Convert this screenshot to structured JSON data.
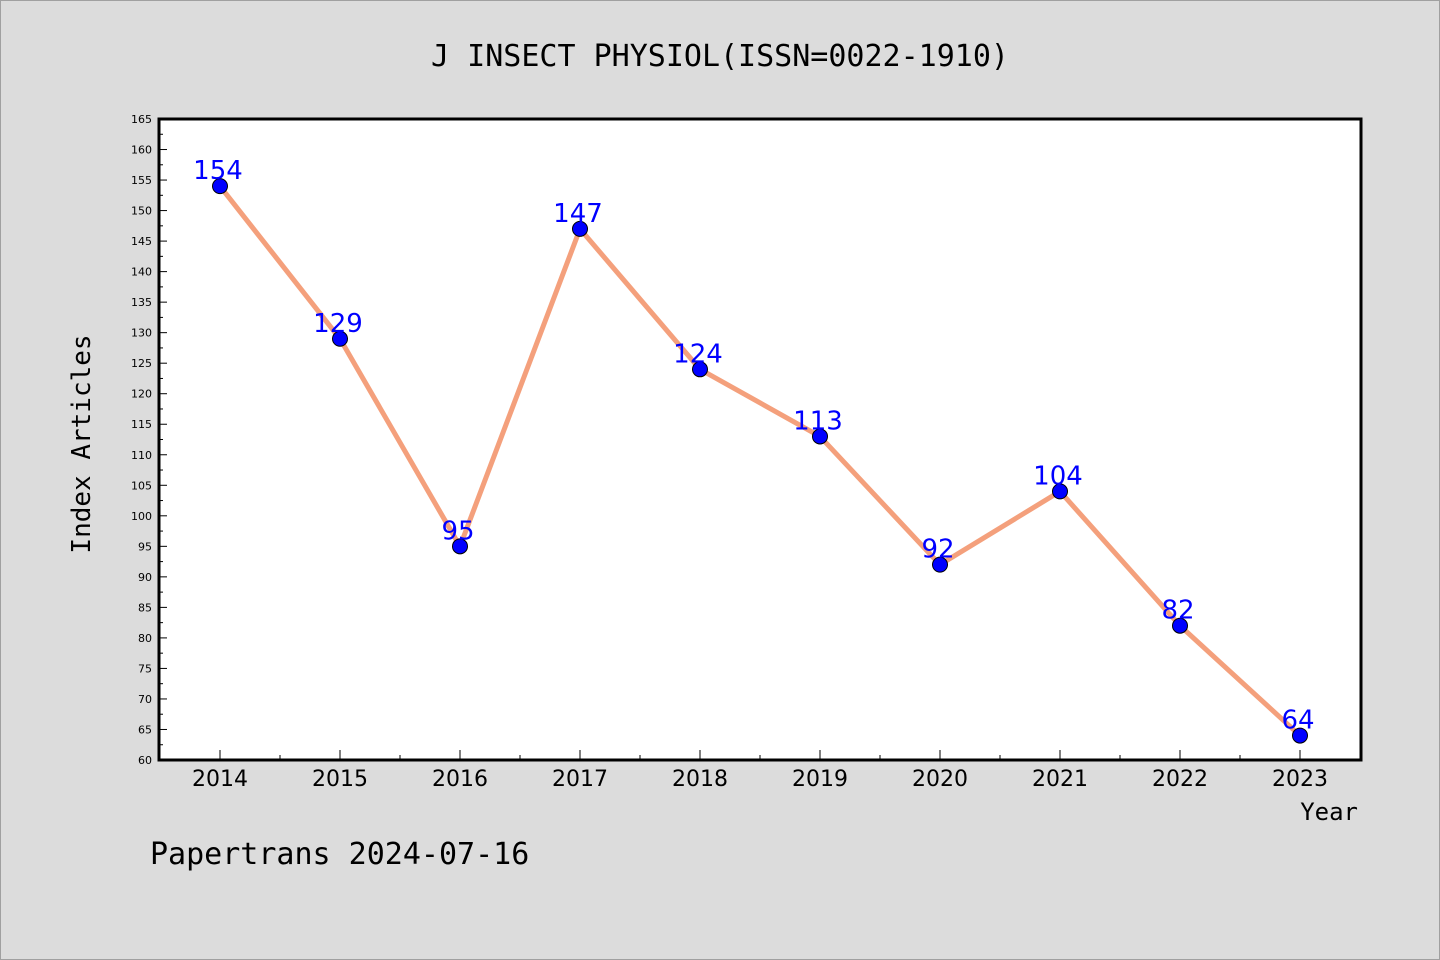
{
  "chart_data": {
    "type": "line",
    "title": "J INSECT PHYSIOL(ISSN=0022-1910)",
    "xlabel": "Year",
    "ylabel": "Index Articles",
    "categories": [
      "2014",
      "2015",
      "2016",
      "2017",
      "2018",
      "2019",
      "2020",
      "2021",
      "2022",
      "2023"
    ],
    "series": [
      {
        "values": [
          154,
          129,
          95,
          147,
          124,
          113,
          92,
          104,
          82,
          64
        ]
      }
    ],
    "ylim": [
      60,
      165
    ],
    "ytick_step": 5,
    "grid": false,
    "line_color": "#f4a07c",
    "marker_color": "#0000ff",
    "label_color": "#0000ff"
  },
  "footer": "Papertrans 2024-07-16"
}
